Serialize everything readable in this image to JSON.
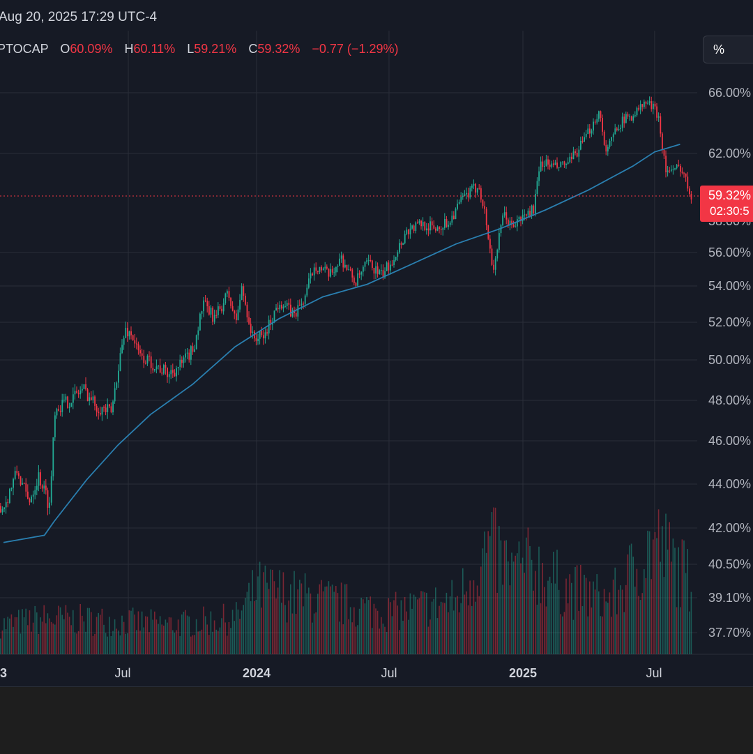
{
  "header": {
    "datetime": "Aug 20, 2025 17:29 UTC-4"
  },
  "legend": {
    "symbol": "PTOCAP",
    "o_label": "O",
    "o_value": "60.09%",
    "h_label": "H",
    "h_value": "60.11%",
    "l_label": "L",
    "l_value": "59.21%",
    "c_label": "C",
    "c_value": "59.32%",
    "change": "−0.77 (−1.29%)"
  },
  "scale_button": {
    "label": "%"
  },
  "price_tag": {
    "price": "59.32%",
    "countdown": "02:30:5"
  },
  "colors": {
    "up": "#22ab94",
    "down": "#f23645",
    "ma": "#2a7fb0",
    "background": "#161a25",
    "grid": "#2a2e39"
  },
  "chart_data": {
    "type": "candlestick",
    "y_axis_labels": [
      "66.00%",
      "62.00%",
      "56.00%",
      "54.00%",
      "52.00%",
      "50.00%",
      "48.00%",
      "46.00%",
      "44.00%",
      "42.00%",
      "40.50%",
      "39.10%",
      "37.70%"
    ],
    "y_axis_values": [
      66.0,
      62.0,
      56.0,
      54.0,
      52.0,
      50.0,
      48.0,
      46.0,
      44.0,
      42.0,
      40.5,
      39.1,
      37.7
    ],
    "x_axis_labels": [
      {
        "text": "3",
        "bold": true
      },
      {
        "text": "Jul",
        "bold": false
      },
      {
        "text": "2024",
        "bold": true
      },
      {
        "text": "Jul",
        "bold": false
      },
      {
        "text": "2025",
        "bold": true
      },
      {
        "text": "Jul",
        "bold": false
      }
    ],
    "last_price": 59.32,
    "price_points": [
      [
        "2023-01-01",
        43.0
      ],
      [
        "2023-01-20",
        44.6
      ],
      [
        "2023-02-05",
        43.2
      ],
      [
        "2023-02-20",
        44.4
      ],
      [
        "2023-03-08",
        43.0
      ],
      [
        "2023-03-15",
        47.6
      ],
      [
        "2023-04-05",
        48.0
      ],
      [
        "2023-04-25",
        48.6
      ],
      [
        "2023-05-15",
        47.7
      ],
      [
        "2023-06-05",
        47.4
      ],
      [
        "2023-06-15",
        49.8
      ],
      [
        "2023-06-25",
        51.6
      ],
      [
        "2023-07-05",
        51.3
      ],
      [
        "2023-07-15",
        50.2
      ],
      [
        "2023-08-05",
        49.8
      ],
      [
        "2023-08-25",
        49.3
      ],
      [
        "2023-09-15",
        49.8
      ],
      [
        "2023-10-01",
        50.6
      ],
      [
        "2023-10-15",
        53.0
      ],
      [
        "2023-11-01",
        52.2
      ],
      [
        "2023-11-20",
        53.6
      ],
      [
        "2023-12-01",
        52.0
      ],
      [
        "2023-12-10",
        53.9
      ],
      [
        "2023-12-25",
        51.2
      ],
      [
        "2024-01-10",
        51.2
      ],
      [
        "2024-02-01",
        53.2
      ],
      [
        "2024-02-20",
        52.4
      ],
      [
        "2024-03-05",
        53.2
      ],
      [
        "2024-03-20",
        55.3
      ],
      [
        "2024-04-10",
        54.6
      ],
      [
        "2024-04-25",
        55.7
      ],
      [
        "2024-05-15",
        54.2
      ],
      [
        "2024-06-01",
        55.4
      ],
      [
        "2024-06-20",
        54.6
      ],
      [
        "2024-07-05",
        55.6
      ],
      [
        "2024-07-25",
        57.3
      ],
      [
        "2024-08-15",
        57.7
      ],
      [
        "2024-09-01",
        57.4
      ],
      [
        "2024-09-20",
        57.8
      ],
      [
        "2024-10-10",
        59.2
      ],
      [
        "2024-11-01",
        60.0
      ],
      [
        "2024-11-10",
        58.0
      ],
      [
        "2024-11-20",
        54.9
      ],
      [
        "2024-12-05",
        58.3
      ],
      [
        "2024-12-15",
        57.5
      ],
      [
        "2025-01-01",
        58.1
      ],
      [
        "2025-01-15",
        58.6
      ],
      [
        "2025-01-25",
        61.5
      ],
      [
        "2025-02-15",
        61.1
      ],
      [
        "2025-03-05",
        61.4
      ],
      [
        "2025-03-25",
        62.8
      ],
      [
        "2025-04-15",
        64.8
      ],
      [
        "2025-04-25",
        62.0
      ],
      [
        "2025-05-10",
        63.9
      ],
      [
        "2025-06-01",
        64.6
      ],
      [
        "2025-06-20",
        65.4
      ],
      [
        "2025-07-05",
        64.6
      ],
      [
        "2025-07-15",
        61.0
      ],
      [
        "2025-07-25",
        60.8
      ],
      [
        "2025-08-05",
        61.2
      ],
      [
        "2025-08-20",
        59.32
      ]
    ],
    "ma_points": [
      [
        "2023-01-01",
        41.4
      ],
      [
        "2023-03-01",
        41.7
      ],
      [
        "2023-03-15",
        42.3
      ],
      [
        "2023-05-01",
        44.2
      ],
      [
        "2023-06-15",
        45.8
      ],
      [
        "2023-08-01",
        47.3
      ],
      [
        "2023-10-01",
        48.8
      ],
      [
        "2023-12-01",
        50.7
      ],
      [
        "2024-02-01",
        52.2
      ],
      [
        "2024-04-01",
        53.4
      ],
      [
        "2024-06-01",
        54.1
      ],
      [
        "2024-08-01",
        55.3
      ],
      [
        "2024-10-01",
        56.5
      ],
      [
        "2024-12-01",
        57.4
      ],
      [
        "2025-02-01",
        58.5
      ],
      [
        "2025-04-01",
        59.7
      ],
      [
        "2025-06-01",
        61.2
      ],
      [
        "2025-07-01",
        62.1
      ],
      [
        "2025-08-05",
        62.6
      ]
    ],
    "volume_note": "volume histogram, relative units",
    "volume_levels": [
      [
        "2023-01-01",
        0.25
      ],
      [
        "2023-03-01",
        0.3
      ],
      [
        "2023-06-01",
        0.28
      ],
      [
        "2023-09-01",
        0.25
      ],
      [
        "2023-12-01",
        0.3
      ],
      [
        "2024-01-01",
        0.55
      ],
      [
        "2024-04-01",
        0.45
      ],
      [
        "2024-07-01",
        0.35
      ],
      [
        "2024-10-01",
        0.45
      ],
      [
        "2024-11-15",
        0.9
      ],
      [
        "2024-12-15",
        0.7
      ],
      [
        "2025-01-15",
        0.75
      ],
      [
        "2025-03-01",
        0.55
      ],
      [
        "2025-05-01",
        0.45
      ],
      [
        "2025-07-01",
        0.95
      ],
      [
        "2025-08-20",
        0.6
      ]
    ]
  }
}
